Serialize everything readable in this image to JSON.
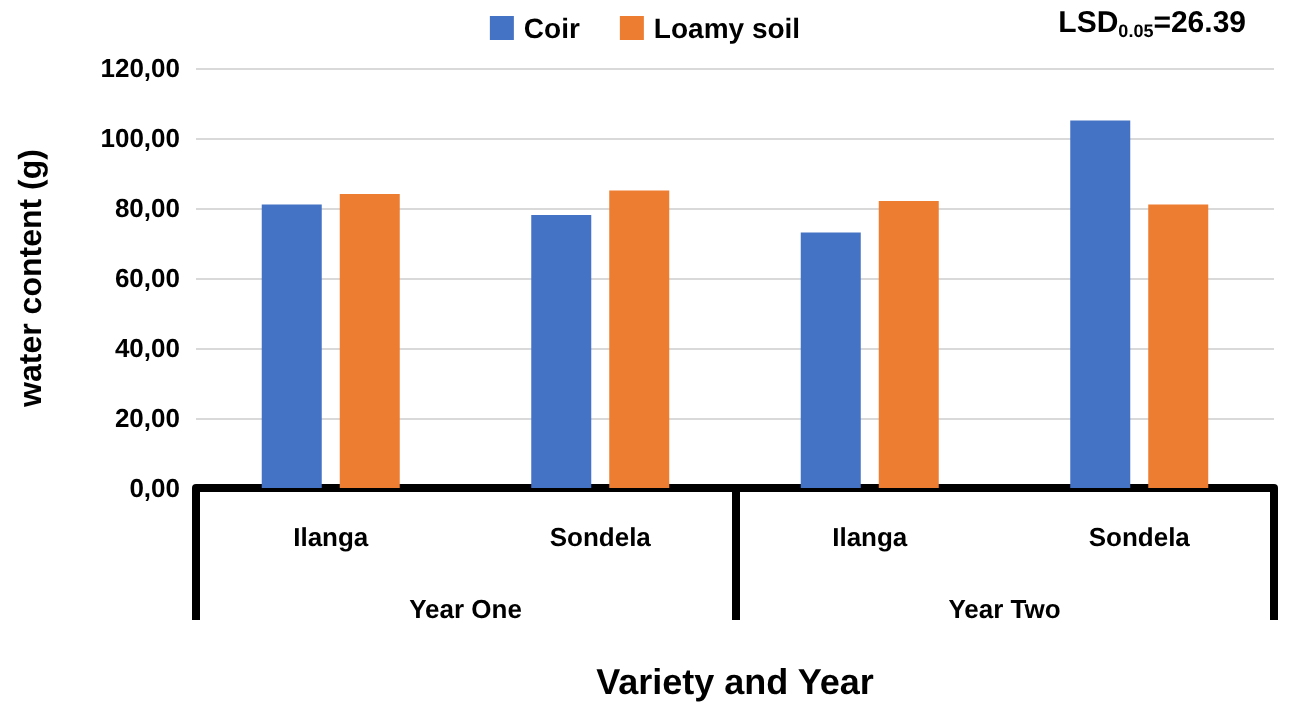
{
  "chart_data": {
    "type": "bar",
    "xlabel": "Variety and Year",
    "ylabel": "water content (g)",
    "categories": [
      "Ilanga",
      "Sondela",
      "Ilanga",
      "Sondela"
    ],
    "series": [
      {
        "name": "Coir",
        "color": "#4472c4",
        "values": [
          81,
          78,
          73,
          105
        ]
      },
      {
        "name": "Loamy soil",
        "color": "#ed7d31",
        "values": [
          84,
          85,
          82,
          81
        ]
      }
    ],
    "ylim": [
      0,
      120
    ],
    "yticks": [
      {
        "value": 0,
        "label": "0,00"
      },
      {
        "value": 20,
        "label": "20,00"
      },
      {
        "value": 40,
        "label": "40,00"
      },
      {
        "value": 60,
        "label": "60,00"
      },
      {
        "value": 80,
        "label": "80,00"
      },
      {
        "value": 100,
        "label": "100,00"
      },
      {
        "value": 120,
        "label": "120,00"
      }
    ],
    "annotations": [
      "LSD$_{0.05}$=26.39",
      "Year One",
      "Year Two"
    ],
    "grid": "y",
    "legend": "top"
  }
}
